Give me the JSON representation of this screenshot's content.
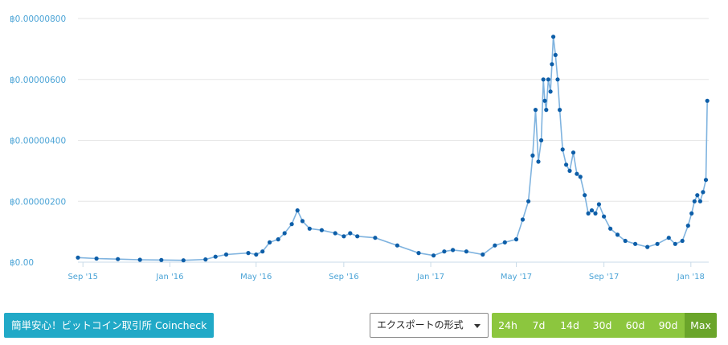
{
  "chart_data": {
    "type": "line",
    "title": "",
    "xlabel": "",
    "ylabel": "",
    "currency_symbol": "฿",
    "y_ticks": [
      "฿0.00",
      "฿0.00000200",
      "฿0.00000400",
      "฿0.00000600",
      "฿0.00000800"
    ],
    "x_ticks": [
      {
        "label": "Sep '15",
        "date": "2015-09-01"
      },
      {
        "label": "Jan '16",
        "date": "2016-01-01"
      },
      {
        "label": "May '16",
        "date": "2016-05-01"
      },
      {
        "label": "Sep '16",
        "date": "2016-09-01"
      },
      {
        "label": "Jan '17",
        "date": "2017-01-01"
      },
      {
        "label": "May '17",
        "date": "2017-05-01"
      },
      {
        "label": "Sep '17",
        "date": "2017-09-01"
      },
      {
        "label": "Jan '18",
        "date": "2018-01-01"
      }
    ],
    "ylim": [
      0,
      8e-06
    ],
    "xlim": [
      "2015-08-25",
      "2018-01-26"
    ],
    "grid": true,
    "legend": "none",
    "line_color": "#7fb3df",
    "marker_color": "#0d5ea8",
    "series": [
      {
        "x": [
          "2015-08-25",
          "2015-09-20",
          "2015-10-20",
          "2015-11-20",
          "2015-12-20",
          "2016-01-20",
          "2016-02-20",
          "2016-03-05",
          "2016-03-20",
          "2016-04-20",
          "2016-05-01",
          "2016-05-10",
          "2016-05-20",
          "2016-06-01",
          "2016-06-10",
          "2016-06-20",
          "2016-06-28",
          "2016-07-05",
          "2016-07-15",
          "2016-08-01",
          "2016-08-20",
          "2016-09-01",
          "2016-09-10",
          "2016-09-20",
          "2016-10-15",
          "2016-11-15",
          "2016-12-15",
          "2017-01-05",
          "2017-01-20",
          "2017-02-01",
          "2017-02-20",
          "2017-03-15",
          "2017-04-01",
          "2017-04-15",
          "2017-05-01",
          "2017-05-10",
          "2017-05-18",
          "2017-05-24",
          "2017-05-28",
          "2017-06-01",
          "2017-06-05",
          "2017-06-08",
          "2017-06-10",
          "2017-06-12",
          "2017-06-15",
          "2017-06-18",
          "2017-06-20",
          "2017-06-22",
          "2017-06-25",
          "2017-06-28",
          "2017-07-01",
          "2017-07-05",
          "2017-07-10",
          "2017-07-15",
          "2017-07-20",
          "2017-07-25",
          "2017-07-30",
          "2017-08-05",
          "2017-08-10",
          "2017-08-15",
          "2017-08-20",
          "2017-08-25",
          "2017-09-01",
          "2017-09-10",
          "2017-09-20",
          "2017-10-01",
          "2017-10-15",
          "2017-11-01",
          "2017-11-15",
          "2017-12-01",
          "2017-12-10",
          "2017-12-20",
          "2017-12-28",
          "2018-01-02",
          "2018-01-06",
          "2018-01-10",
          "2018-01-14",
          "2018-01-18",
          "2018-01-22",
          "2018-01-24"
        ],
        "values": [
          1.5e-07,
          1.2e-07,
          1e-07,
          8e-08,
          7e-08,
          6e-08,
          9e-08,
          1.8e-07,
          2.5e-07,
          3e-07,
          2.5e-07,
          3.5e-07,
          6.5e-07,
          7.5e-07,
          9.5e-07,
          1.25e-06,
          1.7e-06,
          1.35e-06,
          1.1e-06,
          1.05e-06,
          9.5e-07,
          8.5e-07,
          9.5e-07,
          8.5e-07,
          8e-07,
          5.5e-07,
          3e-07,
          2.2e-07,
          3.5e-07,
          4e-07,
          3.5e-07,
          2.5e-07,
          5.5e-07,
          6.5e-07,
          7.5e-07,
          1.4e-06,
          2e-06,
          3.5e-06,
          5e-06,
          3.3e-06,
          4e-06,
          6e-06,
          5.3e-06,
          5e-06,
          6e-06,
          5.6e-06,
          6.5e-06,
          7.4e-06,
          6.8e-06,
          6e-06,
          5e-06,
          3.7e-06,
          3.2e-06,
          3e-06,
          3.6e-06,
          2.9e-06,
          2.8e-06,
          2.2e-06,
          1.6e-06,
          1.7e-06,
          1.6e-06,
          1.9e-06,
          1.5e-06,
          1.1e-06,
          9e-07,
          7e-07,
          6e-07,
          5e-07,
          6e-07,
          8e-07,
          6e-07,
          7e-07,
          1.2e-06,
          1.6e-06,
          2e-06,
          2.2e-06,
          2e-06,
          2.3e-06,
          2.7e-06,
          5.3e-06
        ]
      }
    ]
  },
  "buttons": {
    "coincheck": "簡単安心！ビットコイン取引所 Coincheck",
    "export": "エクスポートの形式"
  },
  "ranges": [
    {
      "label": "24h",
      "active": false
    },
    {
      "label": "7d",
      "active": false
    },
    {
      "label": "14d",
      "active": false
    },
    {
      "label": "30d",
      "active": false
    },
    {
      "label": "60d",
      "active": false
    },
    {
      "label": "90d",
      "active": false
    },
    {
      "label": "Max",
      "active": true
    }
  ]
}
